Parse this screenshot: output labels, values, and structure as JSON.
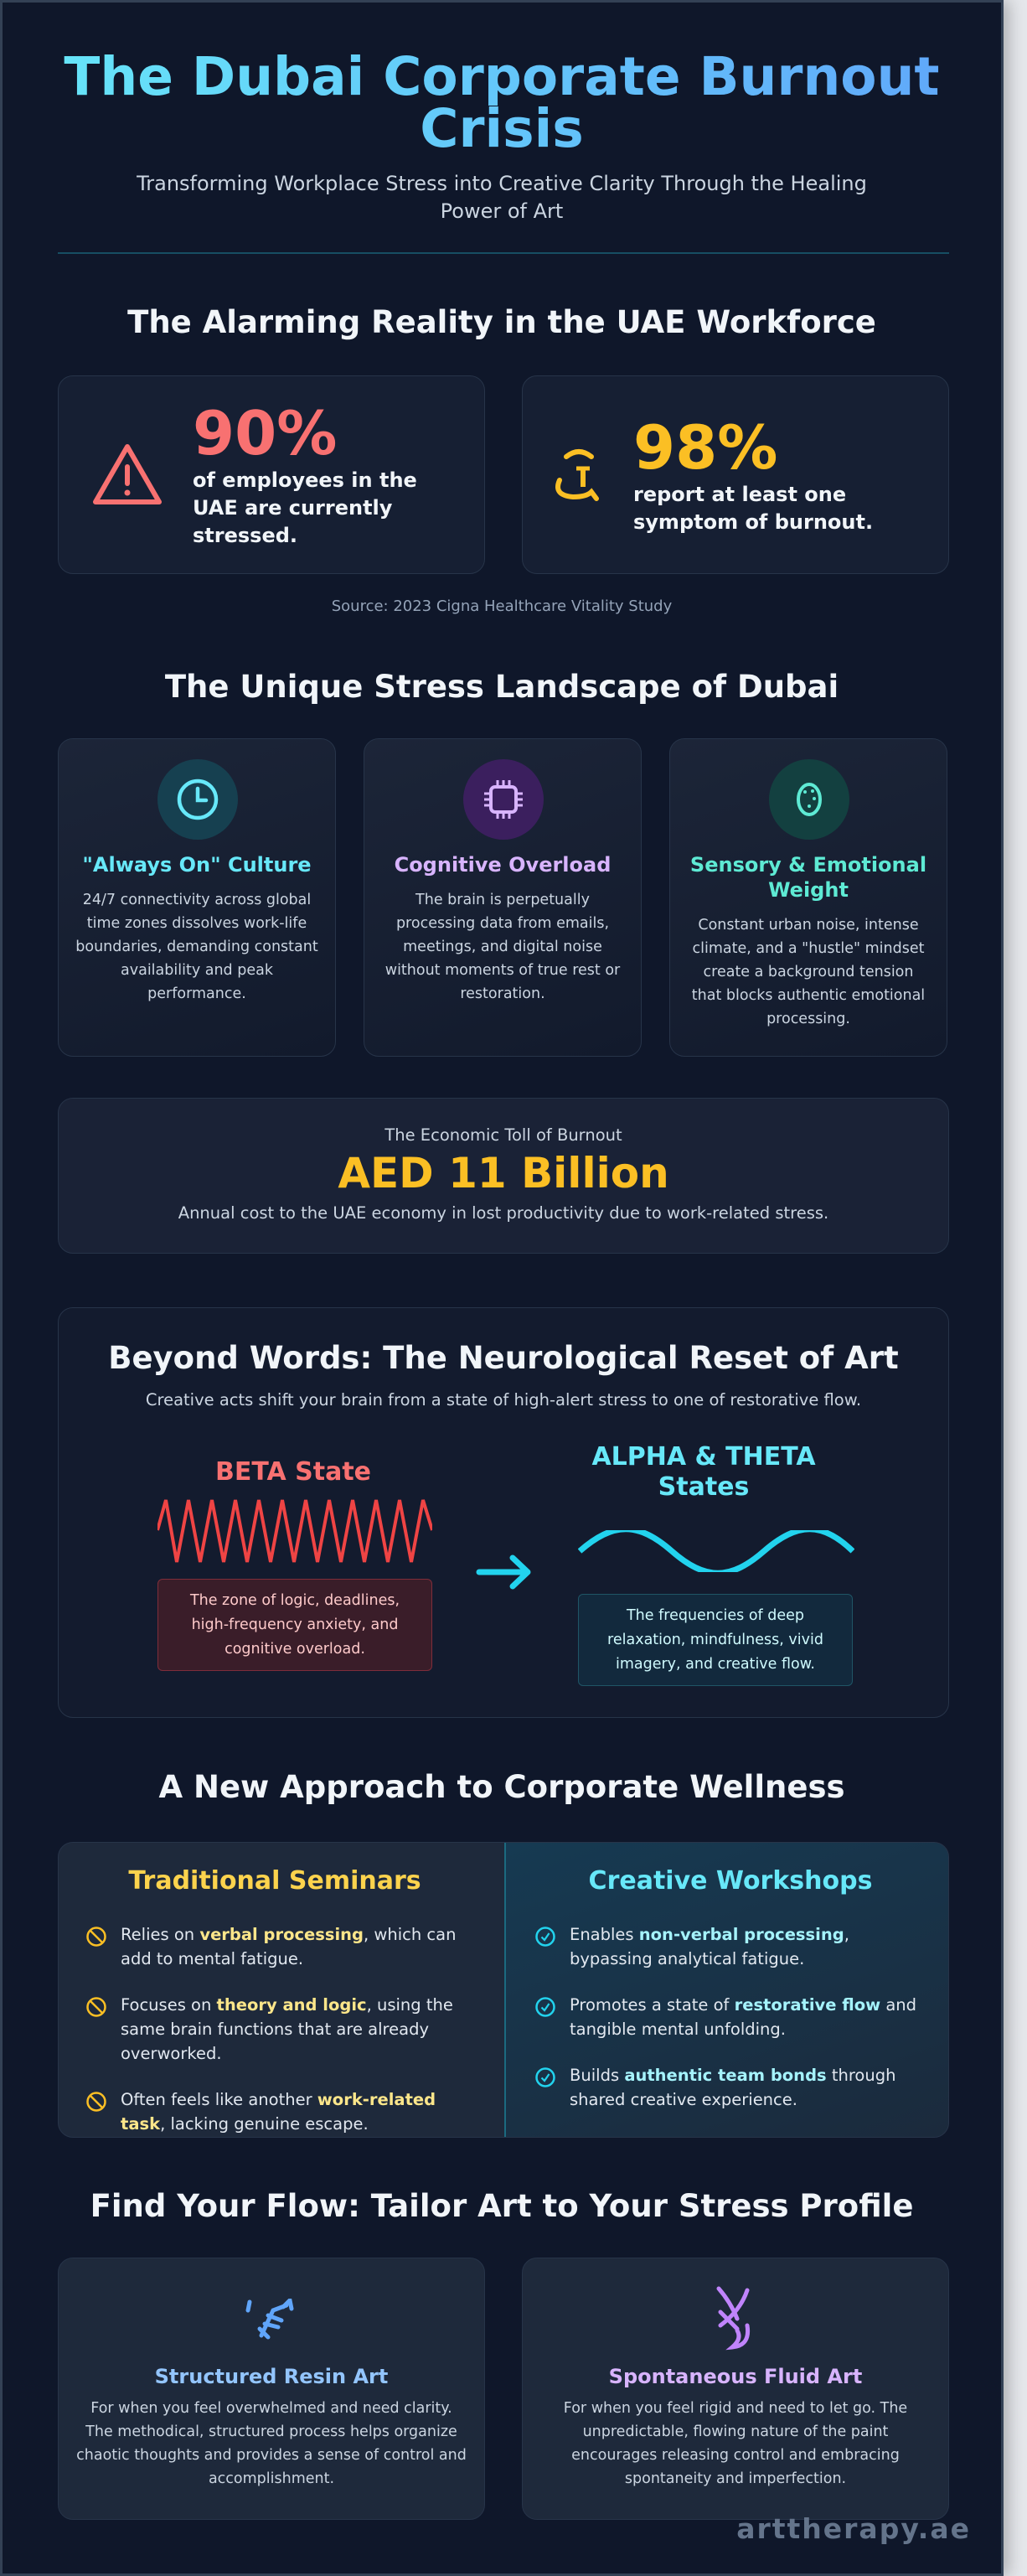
{
  "header": {
    "title": "The Dubai Corporate Burnout Crisis",
    "subtitle": "Transforming Workplace Stress into Creative Clarity Through the Healing Power of Art"
  },
  "reality": {
    "heading": "The Alarming Reality in the UAE Workforce",
    "stats": [
      {
        "value": "90%",
        "text": "of employees in the UAE are currently stressed.",
        "icon": "warning-triangle-icon",
        "color": "#f87171"
      },
      {
        "value": "98%",
        "text": "report at least one symptom of burnout.",
        "icon": "burnout-face-icon",
        "color": "#fbbf24"
      }
    ],
    "source": "Source: 2023 Cigna Healthcare Vitality Study"
  },
  "landscape": {
    "heading": "The Unique Stress Landscape of Dubai",
    "cards": [
      {
        "title": "\"Always On\" Culture",
        "text": "24/7 connectivity across global time zones dissolves work-life boundaries, demanding constant availability and peak performance.",
        "icon": "clock-icon",
        "color": "#67e8f9"
      },
      {
        "title": "Cognitive Overload",
        "text": "The brain is perpetually processing data from emails, meetings, and digital noise without moments of true rest or restoration.",
        "icon": "chip-icon",
        "color": "#d8b4fe"
      },
      {
        "title": "Sensory & Emotional Weight",
        "text": "Constant urban noise, intense climate, and a \"hustle\" mindset create a background tension that blocks authentic emotional processing.",
        "icon": "brain-icon",
        "color": "#5eead4"
      }
    ]
  },
  "economic": {
    "label": "The Economic Toll of Burnout",
    "value": "AED 11 Billion",
    "text": "Annual cost to the UAE economy in lost productivity due to work-related stress.",
    "color": "#fbbf24"
  },
  "neuro": {
    "heading": "Beyond Words: The Neurological Reset of Art",
    "subtitle": "Creative acts shift your brain from a state of high-alert stress to one of restorative flow.",
    "beta": {
      "title": "BETA State",
      "text": "The zone of logic, deadlines, high-frequency anxiety, and cognitive overload.",
      "color": "#f87171"
    },
    "alpha": {
      "title": "ALPHA & THETA States",
      "text": "The frequencies of deep relaxation, mindfulness, vivid imagery, and creative flow.",
      "color": "#67e8f9"
    }
  },
  "approach": {
    "heading": "A New Approach to Corporate Wellness",
    "traditional": {
      "title": "Traditional Seminars",
      "items": [
        [
          "Relies on ",
          "verbal processing",
          ", which can add to mental fatigue."
        ],
        [
          "Focuses on ",
          "theory and logic",
          ", using the same brain functions that are already overworked."
        ],
        [
          "Often feels like another ",
          "work-related task",
          ", lacking genuine escape."
        ]
      ]
    },
    "creative": {
      "title": "Creative Workshops",
      "items": [
        [
          "Enables ",
          "non-verbal processing",
          ", bypassing analytical fatigue."
        ],
        [
          "Promotes a state of ",
          "restorative flow",
          " and tangible mental unfolding."
        ],
        [
          "Builds ",
          "authentic team bonds",
          " through shared creative experience."
        ]
      ]
    }
  },
  "flow": {
    "heading": "Find Your Flow: Tailor Art to Your Stress Profile",
    "cards": [
      {
        "title": "Structured Resin Art",
        "text": "For when you feel overwhelmed and need clarity. The methodical, structured process helps organize chaotic thoughts and provides a sense of control and accomplishment.",
        "icon": "structured-art-icon",
        "color": "#93c5fd"
      },
      {
        "title": "Spontaneous Fluid Art",
        "text": "For when you feel rigid and need to let go. The unpredictable, flowing nature of the paint encourages releasing control and embracing spontaneity and imperfection.",
        "icon": "fluid-art-icon",
        "color": "#d8b4fe"
      }
    ]
  },
  "brand": "arttherapy.ae"
}
